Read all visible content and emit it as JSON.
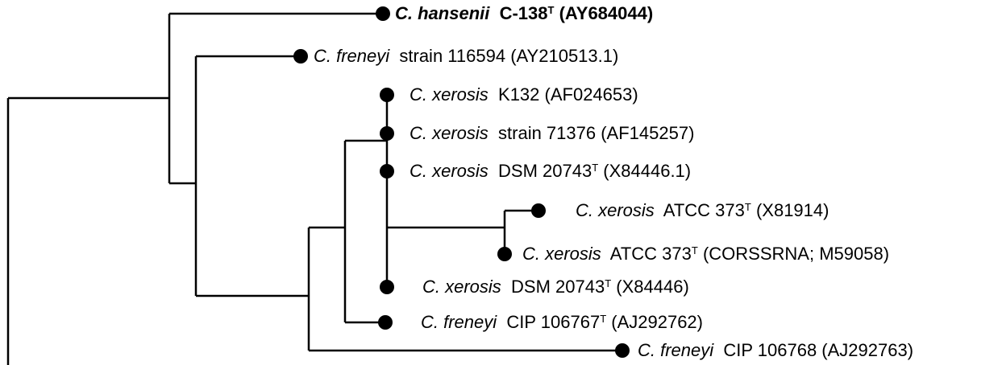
{
  "tree": {
    "taxa": [
      {
        "id": "t1",
        "genus": "C.",
        "species": "hansenii",
        "strain": "C-138",
        "type_strain": true,
        "accession": "(AY684044)",
        "bold": true
      },
      {
        "id": "t2",
        "genus": "C.",
        "species": "freneyi",
        "strain": "strain 116594",
        "type_strain": false,
        "accession": "(AY210513.1)",
        "bold": false
      },
      {
        "id": "t3",
        "genus": "C.",
        "species": "xerosis",
        "strain": "K132",
        "type_strain": false,
        "accession": "(AF024653)",
        "bold": false
      },
      {
        "id": "t4",
        "genus": "C.",
        "species": "xerosis",
        "strain": "strain 71376",
        "type_strain": false,
        "accession": "(AF145257)",
        "bold": false
      },
      {
        "id": "t5",
        "genus": "C.",
        "species": "xerosis",
        "strain": "DSM 20743",
        "type_strain": true,
        "accession": "(X84446.1)",
        "bold": false
      },
      {
        "id": "t6",
        "genus": "C.",
        "species": "xerosis",
        "strain": "ATCC 373",
        "type_strain": true,
        "accession": "(X81914)",
        "bold": false
      },
      {
        "id": "t7",
        "genus": "C.",
        "species": "xerosis",
        "strain": "ATCC 373",
        "type_strain": true,
        "accession": "(CORSSRNA; M59058)",
        "bold": false
      },
      {
        "id": "t8",
        "genus": "C.",
        "species": "xerosis",
        "strain": "DSM 20743",
        "type_strain": true,
        "accession": "(X84446)",
        "bold": false
      },
      {
        "id": "t9",
        "genus": "C.",
        "species": "freneyi",
        "strain": "CIP 106767",
        "type_strain": true,
        "accession": "(AJ292762)",
        "bold": false
      },
      {
        "id": "t10",
        "genus": "C.",
        "species": "freneyi",
        "strain": "CIP 106768",
        "type_strain": false,
        "accession": "(AJ292763)",
        "bold": false
      }
    ],
    "type_marker": "T",
    "line_color": "#000000",
    "node_color": "#000000"
  }
}
